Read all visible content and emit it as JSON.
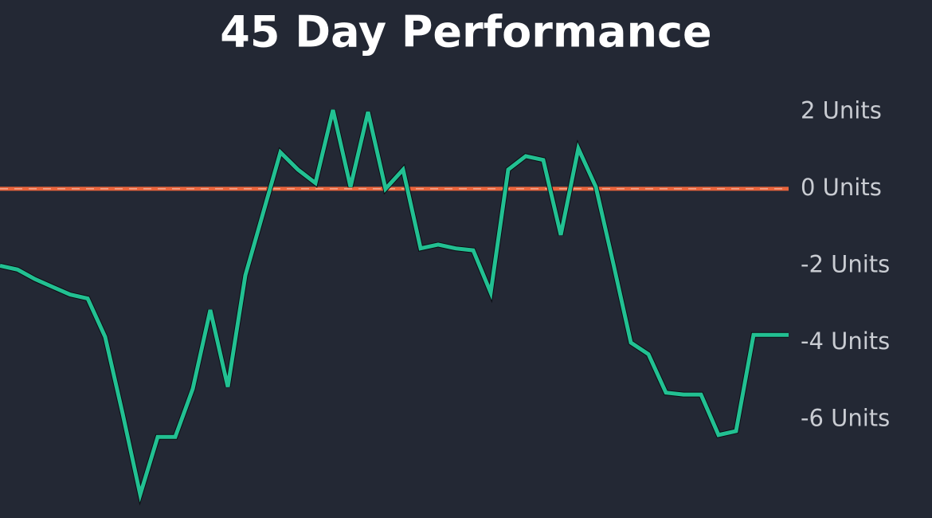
{
  "chart_data": {
    "type": "line",
    "title": "45 Day Performance",
    "values": [
      -2.0,
      -2.1,
      -2.35,
      -2.55,
      -2.75,
      -2.85,
      -3.85,
      -5.85,
      -7.95,
      -6.45,
      -6.45,
      -5.2,
      -3.15,
      -5.15,
      -2.25,
      -0.65,
      0.95,
      0.5,
      0.15,
      2.05,
      0.05,
      2.0,
      0,
      0.5,
      -1.55,
      -1.45,
      -1.55,
      -1.6,
      -2.7,
      0.5,
      0.85,
      0.75,
      -1.2,
      1.05,
      0.05,
      -1.95,
      -4.0,
      -4.3,
      -5.3,
      -5.35,
      -5.35,
      -6.4,
      -6.3,
      -3.8,
      -3.8,
      -3.8
    ],
    "color": "#22c092",
    "reference_line": {
      "value": 0,
      "color": "#e8643c"
    },
    "ylim": [
      -8.56,
      4.91
    ],
    "yticks": [
      {
        "value": 2,
        "label": "2 Units"
      },
      {
        "value": 0,
        "label": "0 Units"
      },
      {
        "value": -2,
        "label": "-2 Units"
      },
      {
        "value": -4,
        "label": "-4 Units"
      },
      {
        "value": -6,
        "label": "-6 Units"
      }
    ],
    "grid": false
  }
}
